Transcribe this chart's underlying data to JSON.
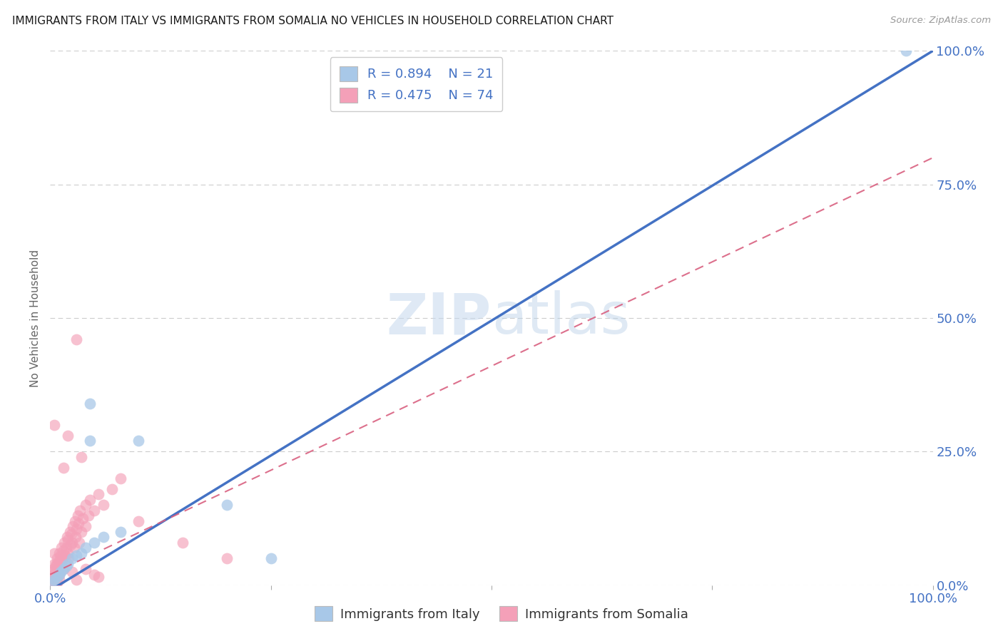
{
  "title": "IMMIGRANTS FROM ITALY VS IMMIGRANTS FROM SOMALIA NO VEHICLES IN HOUSEHOLD CORRELATION CHART",
  "source": "Source: ZipAtlas.com",
  "ylabel": "No Vehicles in Household",
  "ytick_labels": [
    "0.0%",
    "25.0%",
    "50.0%",
    "75.0%",
    "100.0%"
  ],
  "ytick_values": [
    0,
    25,
    50,
    75,
    100
  ],
  "xtick_labels": [
    "0.0%",
    "",
    "",
    "",
    "100.0%"
  ],
  "xtick_values": [
    0,
    25,
    50,
    75,
    100
  ],
  "xlim": [
    0,
    100
  ],
  "ylim": [
    0,
    100
  ],
  "watermark": "ZIPatlas",
  "legend_italy_r": "R = 0.894",
  "legend_italy_n": "N = 21",
  "legend_somalia_r": "R = 0.475",
  "legend_somalia_n": "N = 74",
  "italy_color": "#a8c8e8",
  "somalia_color": "#f4a0b8",
  "italy_line_color": "#4472C4",
  "somalia_line_color": "#d96080",
  "italy_line_slope": 1.01,
  "italy_line_intercept": -1.0,
  "somalia_line_slope": 0.78,
  "somalia_line_intercept": 2.0,
  "italy_scatter": [
    [
      0.3,
      0.5
    ],
    [
      0.5,
      1.0
    ],
    [
      0.8,
      1.5
    ],
    [
      1.0,
      2.0
    ],
    [
      1.2,
      2.5
    ],
    [
      1.5,
      3.0
    ],
    [
      1.8,
      3.5
    ],
    [
      2.0,
      4.0
    ],
    [
      2.5,
      5.0
    ],
    [
      3.0,
      5.5
    ],
    [
      3.5,
      6.0
    ],
    [
      4.0,
      7.0
    ],
    [
      5.0,
      8.0
    ],
    [
      6.0,
      9.0
    ],
    [
      8.0,
      10.0
    ],
    [
      4.5,
      27.0
    ],
    [
      4.5,
      34.0
    ],
    [
      10.0,
      27.0
    ],
    [
      25.0,
      5.0
    ],
    [
      20.0,
      15.0
    ],
    [
      97.0,
      100.0
    ]
  ],
  "somalia_scatter": [
    [
      0.1,
      0.3
    ],
    [
      0.2,
      0.8
    ],
    [
      0.3,
      1.5
    ],
    [
      0.3,
      2.5
    ],
    [
      0.4,
      1.0
    ],
    [
      0.4,
      3.0
    ],
    [
      0.5,
      0.5
    ],
    [
      0.5,
      2.0
    ],
    [
      0.5,
      4.0
    ],
    [
      0.5,
      6.0
    ],
    [
      0.6,
      1.5
    ],
    [
      0.6,
      2.5
    ],
    [
      0.6,
      3.5
    ],
    [
      0.7,
      1.0
    ],
    [
      0.7,
      4.0
    ],
    [
      0.8,
      2.0
    ],
    [
      0.8,
      5.0
    ],
    [
      0.9,
      3.0
    ],
    [
      1.0,
      2.0
    ],
    [
      1.0,
      4.5
    ],
    [
      1.0,
      6.0
    ],
    [
      1.1,
      3.5
    ],
    [
      1.2,
      5.5
    ],
    [
      1.3,
      4.0
    ],
    [
      1.3,
      7.0
    ],
    [
      1.4,
      5.0
    ],
    [
      1.5,
      3.0
    ],
    [
      1.5,
      6.5
    ],
    [
      1.6,
      8.0
    ],
    [
      1.7,
      5.5
    ],
    [
      1.8,
      7.0
    ],
    [
      1.9,
      9.0
    ],
    [
      2.0,
      6.0
    ],
    [
      2.0,
      8.5
    ],
    [
      2.1,
      5.0
    ],
    [
      2.2,
      10.0
    ],
    [
      2.3,
      7.5
    ],
    [
      2.4,
      9.5
    ],
    [
      2.5,
      8.0
    ],
    [
      2.6,
      11.0
    ],
    [
      2.7,
      7.0
    ],
    [
      2.8,
      12.0
    ],
    [
      2.9,
      9.0
    ],
    [
      3.0,
      10.5
    ],
    [
      3.1,
      13.0
    ],
    [
      3.2,
      11.5
    ],
    [
      3.3,
      8.0
    ],
    [
      3.4,
      14.0
    ],
    [
      3.5,
      10.0
    ],
    [
      3.7,
      12.5
    ],
    [
      4.0,
      11.0
    ],
    [
      4.0,
      15.0
    ],
    [
      4.3,
      13.0
    ],
    [
      4.5,
      16.0
    ],
    [
      5.0,
      14.0
    ],
    [
      5.5,
      17.0
    ],
    [
      6.0,
      15.0
    ],
    [
      7.0,
      18.0
    ],
    [
      8.0,
      20.0
    ],
    [
      3.0,
      46.0
    ],
    [
      0.5,
      30.0
    ],
    [
      1.5,
      22.0
    ],
    [
      2.0,
      28.0
    ],
    [
      3.5,
      24.0
    ],
    [
      4.0,
      3.0
    ],
    [
      5.0,
      2.0
    ],
    [
      3.0,
      1.0
    ],
    [
      5.5,
      1.5
    ],
    [
      2.5,
      2.5
    ],
    [
      1.0,
      1.0
    ],
    [
      0.8,
      0.5
    ],
    [
      20.0,
      5.0
    ],
    [
      15.0,
      8.0
    ],
    [
      10.0,
      12.0
    ]
  ],
  "title_fontsize": 11,
  "axis_label_color": "#4472C4",
  "grid_color": "#cccccc",
  "scatter_size": 130,
  "scatter_alpha_italy": 0.75,
  "scatter_alpha_somalia": 0.65
}
